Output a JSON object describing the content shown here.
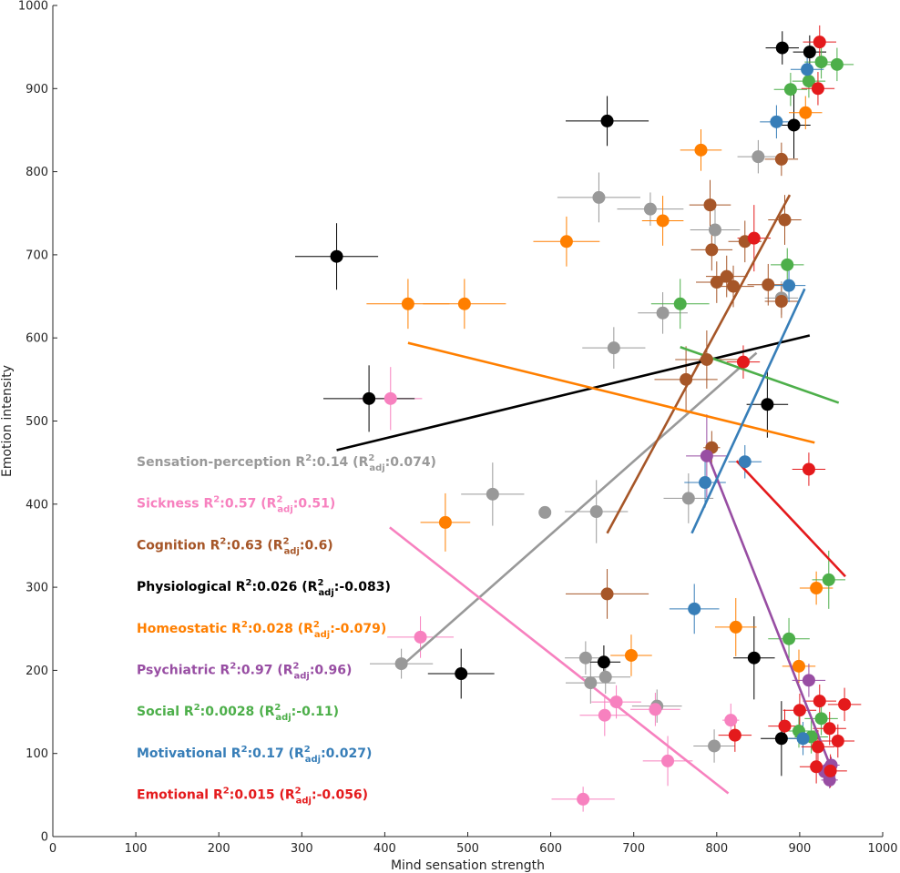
{
  "chart_data": {
    "type": "scatter",
    "xlabel": "Mind sensation strength",
    "ylabel": "Emotion intensity",
    "xlim": [
      0,
      1000
    ],
    "ylim": [
      0,
      1000
    ],
    "xticks": [
      "0",
      "100",
      "200",
      "300",
      "400",
      "500",
      "600",
      "700",
      "800",
      "900",
      "1000"
    ],
    "yticks": [
      "0",
      "100",
      "200",
      "300",
      "400",
      "500",
      "600",
      "700",
      "800",
      "900",
      "1000"
    ],
    "grid": false,
    "legend_placement": "inside-left",
    "series": [
      {
        "name": "Sensation-perception",
        "color": "#999999",
        "r2": "0.14",
        "r2adj": "0.074",
        "fit": [
          [
            420,
            205
          ],
          [
            848,
            582
          ]
        ],
        "points": [
          [
            420,
            208,
            38,
            18
          ],
          [
            530,
            412,
            38,
            38
          ],
          [
            593,
            390,
            0,
            0
          ],
          [
            655,
            391,
            38,
            38
          ],
          [
            658,
            769,
            50,
            30
          ],
          [
            676,
            588,
            38,
            25
          ],
          [
            720,
            755,
            40,
            20
          ],
          [
            735,
            630,
            30,
            25
          ],
          [
            648,
            185,
            30,
            25
          ],
          [
            642,
            215,
            25,
            20
          ],
          [
            666,
            192,
            30,
            20
          ],
          [
            728,
            157,
            30,
            20
          ],
          [
            766,
            407,
            30,
            30
          ],
          [
            798,
            730,
            30,
            25
          ],
          [
            797,
            109,
            25,
            20
          ],
          [
            850,
            818,
            25,
            20
          ],
          [
            878,
            648,
            20,
            20
          ]
        ]
      },
      {
        "name": "Sickness",
        "color": "#f781bf",
        "r2": "0.57",
        "r2adj": "0.51",
        "fit": [
          [
            406,
            372
          ],
          [
            814,
            52
          ]
        ],
        "points": [
          [
            407,
            527,
            38,
            38
          ],
          [
            443,
            240,
            40,
            25
          ],
          [
            639,
            45,
            38,
            15
          ],
          [
            665,
            146,
            30,
            25
          ],
          [
            679,
            162,
            30,
            20
          ],
          [
            726,
            153,
            30,
            20
          ],
          [
            741,
            91,
            30,
            30
          ],
          [
            817,
            140,
            10,
            20
          ]
        ]
      },
      {
        "name": "Cognition",
        "color": "#a65628",
        "r2": "0.63",
        "r2adj": "0.6",
        "fit": [
          [
            668,
            365
          ],
          [
            888,
            772
          ]
        ],
        "points": [
          [
            668,
            292,
            50,
            30
          ],
          [
            763,
            550,
            38,
            40
          ],
          [
            788,
            574,
            38,
            35
          ],
          [
            792,
            760,
            25,
            30
          ],
          [
            794,
            468,
            10,
            20
          ],
          [
            794,
            706,
            25,
            25
          ],
          [
            800,
            667,
            25,
            25
          ],
          [
            812,
            674,
            25,
            25
          ],
          [
            820,
            662,
            25,
            25
          ],
          [
            834,
            716,
            20,
            25
          ],
          [
            862,
            664,
            25,
            25
          ],
          [
            878,
            815,
            20,
            20
          ],
          [
            878,
            644,
            20,
            20
          ],
          [
            882,
            742,
            20,
            30
          ]
        ]
      },
      {
        "name": "Physiological",
        "color": "#000000",
        "r2": "0.026",
        "r2adj": "-0.083",
        "fit": [
          [
            342,
            465
          ],
          [
            912,
            603
          ]
        ],
        "points": [
          [
            342,
            698,
            50,
            40
          ],
          [
            381,
            527,
            55,
            40
          ],
          [
            492,
            196,
            40,
            30
          ],
          [
            664,
            210,
            20,
            20
          ],
          [
            668,
            861,
            50,
            30
          ],
          [
            845,
            215,
            25,
            50
          ],
          [
            861,
            520,
            25,
            40
          ],
          [
            879,
            949,
            20,
            20
          ],
          [
            878,
            118,
            25,
            45
          ],
          [
            893,
            856,
            20,
            40
          ],
          [
            912,
            944,
            20,
            20
          ]
        ]
      },
      {
        "name": "Homeostatic",
        "color": "#ff7f00",
        "r2": "0.028",
        "r2adj": "-0.079",
        "fit": [
          [
            428,
            594
          ],
          [
            918,
            474
          ]
        ],
        "points": [
          [
            428,
            641,
            50,
            30
          ],
          [
            496,
            641,
            50,
            30
          ],
          [
            473,
            378,
            30,
            35
          ],
          [
            619,
            716,
            40,
            30
          ],
          [
            697,
            218,
            25,
            25
          ],
          [
            735,
            741,
            25,
            30
          ],
          [
            781,
            826,
            25,
            25
          ],
          [
            823,
            252,
            25,
            35
          ],
          [
            899,
            205,
            20,
            20
          ],
          [
            907,
            871,
            20,
            20
          ],
          [
            920,
            299,
            20,
            20
          ]
        ]
      },
      {
        "name": "Psychiatric",
        "color": "#984ea3",
        "r2": "0.97",
        "r2adj": "0.96",
        "fit": [
          [
            788,
            462
          ],
          [
            942,
            72
          ]
        ],
        "points": [
          [
            788,
            458,
            25,
            50
          ],
          [
            911,
            188,
            20,
            20
          ],
          [
            930,
            78,
            10,
            10
          ],
          [
            936,
            68,
            10,
            10
          ],
          [
            938,
            86,
            10,
            10
          ]
        ]
      },
      {
        "name": "Social",
        "color": "#4daf4a",
        "r2": "0.0028",
        "r2adj": "-0.11",
        "fit": [
          [
            756,
            589
          ],
          [
            947,
            522
          ]
        ],
        "points": [
          [
            756,
            641,
            35,
            30
          ],
          [
            885,
            688,
            20,
            20
          ],
          [
            887,
            238,
            25,
            25
          ],
          [
            889,
            899,
            20,
            20
          ],
          [
            911,
            909,
            20,
            20
          ],
          [
            926,
            932,
            20,
            20
          ],
          [
            926,
            142,
            20,
            20
          ],
          [
            935,
            309,
            20,
            35
          ],
          [
            945,
            929,
            20,
            20
          ],
          [
            899,
            127,
            20,
            20
          ],
          [
            914,
            120,
            20,
            20
          ]
        ]
      },
      {
        "name": "Motivational",
        "color": "#377eb8",
        "r2": "0.17",
        "r2adj": "0.027",
        "fit": [
          [
            770,
            365
          ],
          [
            906,
            659
          ]
        ],
        "points": [
          [
            773,
            274,
            30,
            30
          ],
          [
            786,
            426,
            25,
            30
          ],
          [
            834,
            451,
            20,
            20
          ],
          [
            872,
            860,
            20,
            20
          ],
          [
            887,
            663,
            20,
            20
          ],
          [
            909,
            923,
            20,
            20
          ],
          [
            904,
            118,
            20,
            20
          ]
        ]
      },
      {
        "name": "Emotional",
        "color": "#e41a1c",
        "r2": "0.015",
        "r2adj": "-0.056",
        "fit": [
          [
            824,
            452
          ],
          [
            955,
            313
          ]
        ],
        "points": [
          [
            832,
            571,
            20,
            20
          ],
          [
            845,
            720,
            20,
            40
          ],
          [
            822,
            122,
            20,
            20
          ],
          [
            882,
            133,
            20,
            20
          ],
          [
            900,
            152,
            20,
            20
          ],
          [
            911,
            442,
            20,
            20
          ],
          [
            920,
            84,
            20,
            20
          ],
          [
            922,
            108,
            20,
            20
          ],
          [
            924,
            163,
            20,
            20
          ],
          [
            924,
            956,
            20,
            20
          ],
          [
            922,
            900,
            20,
            20
          ],
          [
            936,
            130,
            20,
            20
          ],
          [
            937,
            79,
            20,
            20
          ],
          [
            946,
            115,
            20,
            20
          ],
          [
            954,
            159,
            20,
            20
          ]
        ]
      }
    ]
  }
}
